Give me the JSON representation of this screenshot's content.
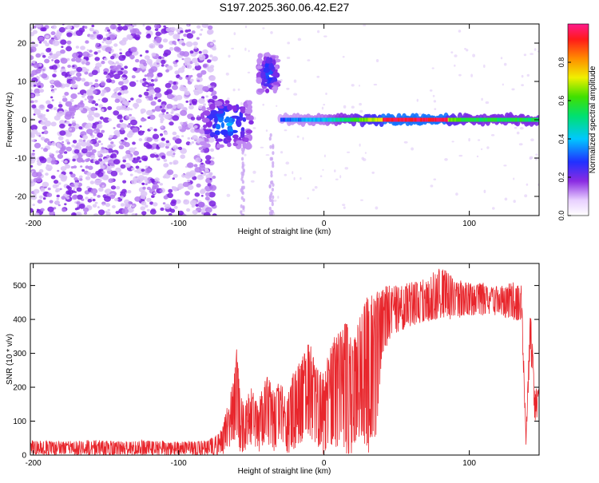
{
  "page": {
    "title": "S197.2025.360.06.42.E27"
  },
  "chart_data": [
    {
      "type": "heatmap",
      "id": "spectrogram",
      "xlabel": "Height of straight line (km)",
      "ylabel": "Frequency (Hz)",
      "xlim": [
        -202,
        148
      ],
      "ylim": [
        -25,
        25
      ],
      "xticks": [
        -200,
        -100,
        0,
        100
      ],
      "yticks": [
        -20,
        -10,
        0,
        10,
        20
      ],
      "colorbar": {
        "label": "Normalized spectral amplitude",
        "range": [
          0,
          1
        ],
        "ticks": [
          0.0,
          0.2,
          0.4,
          0.6,
          0.8
        ],
        "tick_labels": [
          "0.0",
          "0.2",
          "0.4",
          "0.6",
          "0.8"
        ]
      },
      "features": [
        {
          "name": "noise field",
          "x_range": [
            -202,
            -75
          ],
          "freq_range": [
            -25,
            25
          ],
          "amplitude": 0.05
        },
        {
          "name": "burst A",
          "x_center": -67,
          "freq_center": -1,
          "amplitude": 0.35
        },
        {
          "name": "burst B",
          "x_center": -38,
          "freq_center": 12,
          "amplitude": 0.3
        },
        {
          "name": "tone line",
          "x_range": [
            -30,
            148
          ],
          "freq": 0,
          "amplitude_start": 0.3,
          "amplitude_peak": 0.95,
          "peak_x_range": [
            40,
            85
          ],
          "amplitude_end": 0.55
        }
      ]
    },
    {
      "type": "line",
      "id": "snr",
      "xlabel": "Height of straight line (km)",
      "ylabel": "SNR (10 * v/v)",
      "xlim": [
        -202,
        148
      ],
      "ylim": [
        0,
        565
      ],
      "xticks": [
        -200,
        -100,
        0,
        100
      ],
      "yticks": [
        0,
        100,
        200,
        300,
        400,
        500
      ],
      "series": [
        {
          "name": "SNR",
          "color": "#e8262c",
          "x": [
            -202,
            -180,
            -160,
            -140,
            -120,
            -100,
            -80,
            -70,
            -62,
            -60,
            -58,
            -55,
            -50,
            -45,
            -40,
            -35,
            -30,
            -25,
            -20,
            -15,
            -10,
            -5,
            0,
            5,
            10,
            15,
            20,
            25,
            30,
            35,
            40,
            50,
            60,
            70,
            80,
            90,
            100,
            110,
            120,
            130,
            136,
            139,
            142,
            145,
            148
          ],
          "values": [
            20,
            20,
            20,
            20,
            20,
            20,
            20,
            35,
            180,
            310,
            120,
            60,
            120,
            90,
            180,
            120,
            160,
            100,
            190,
            220,
            250,
            160,
            170,
            280,
            300,
            320,
            270,
            340,
            390,
            410,
            420,
            440,
            450,
            460,
            460,
            470,
            470,
            470,
            460,
            460,
            450,
            40,
            380,
            150,
            170
          ],
          "lower_envelope": [
            0,
            0,
            0,
            0,
            0,
            0,
            0,
            0,
            30,
            60,
            0,
            0,
            20,
            0,
            40,
            0,
            30,
            0,
            20,
            40,
            60,
            20,
            0,
            30,
            20,
            0,
            0,
            30,
            0,
            0,
            300,
            360,
            380,
            390,
            400,
            400,
            410,
            410,
            410,
            400,
            390,
            30,
            310,
            100,
            110
          ],
          "upper_envelope": [
            45,
            40,
            45,
            40,
            45,
            40,
            45,
            80,
            230,
            320,
            200,
            150,
            200,
            160,
            240,
            200,
            230,
            180,
            260,
            300,
            340,
            260,
            240,
            340,
            360,
            400,
            350,
            420,
            470,
            480,
            500,
            500,
            510,
            520,
            560,
            520,
            510,
            510,
            500,
            510,
            500,
            60,
            440,
            200,
            200
          ]
        }
      ]
    }
  ]
}
